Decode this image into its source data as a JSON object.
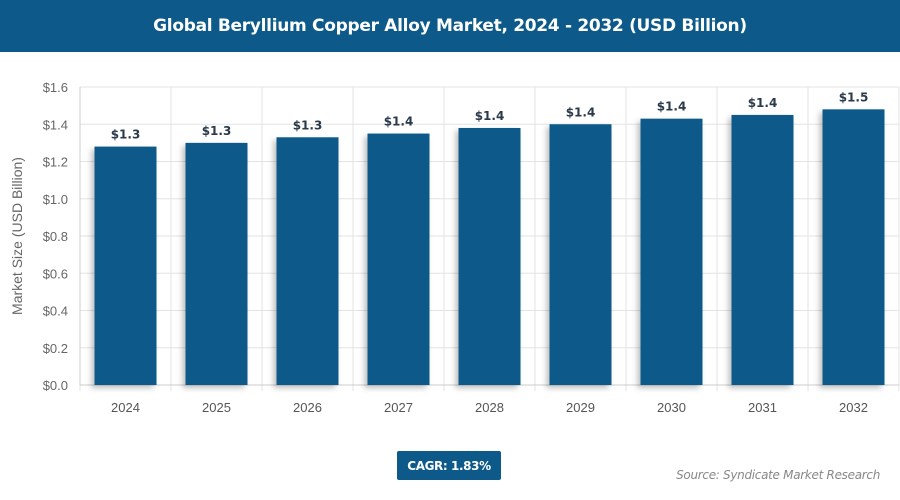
{
  "chart_data": {
    "type": "bar",
    "title": "Global Beryllium Copper Alloy Market, 2024 - 2032 (USD Billion)",
    "xlabel": "",
    "ylabel": "Market Size (USD Billion)",
    "categories": [
      "2024",
      "2025",
      "2026",
      "2027",
      "2028",
      "2029",
      "2030",
      "2031",
      "2032"
    ],
    "values": [
      1.28,
      1.3,
      1.33,
      1.35,
      1.38,
      1.4,
      1.43,
      1.45,
      1.48
    ],
    "data_labels": [
      "$1.3",
      "$1.3",
      "$1.3",
      "$1.4",
      "$1.4",
      "$1.4",
      "$1.4",
      "$1.4",
      "$1.5"
    ],
    "ylim": [
      0,
      1.6
    ],
    "yticks": [
      "$0.0",
      "$0.2",
      "$0.4",
      "$0.6",
      "$0.8",
      "$1.0",
      "$1.2",
      "$1.4",
      "$1.6"
    ],
    "grid": true,
    "bar_color": "#0d5a8a"
  },
  "cagr": "CAGR: 1.83%",
  "source": "Source: Syndicate Market Research"
}
